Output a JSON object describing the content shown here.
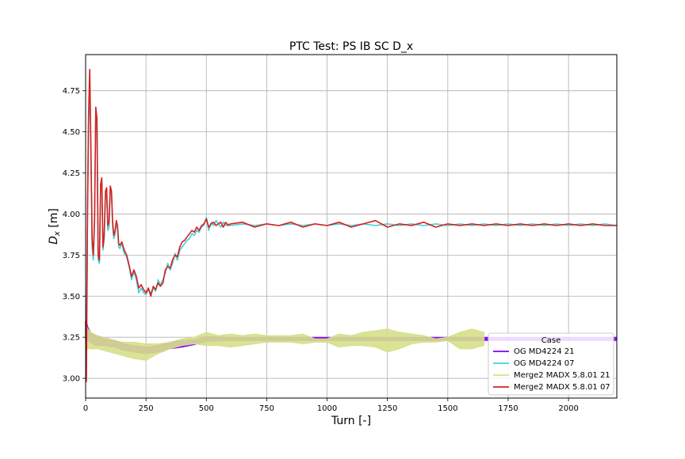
{
  "chart_data": {
    "type": "line",
    "title": "PTC Test: PS IB SC D_x",
    "xlabel": "Turn [-]",
    "ylabel_main": "D",
    "ylabel_sub": "x",
    "ylabel_unit": " [m]",
    "xlim": [
      0,
      2200
    ],
    "ylim": [
      2.88,
      4.97
    ],
    "x_ticks": [
      0,
      250,
      500,
      750,
      1000,
      1250,
      1500,
      1750,
      2000
    ],
    "y_ticks": [
      3.0,
      3.25,
      3.5,
      3.75,
      4.0,
      4.25,
      4.5,
      4.75
    ],
    "x_tick_labels": [
      "0",
      "250",
      "500",
      "750",
      "1000",
      "1250",
      "1500",
      "1750",
      "2000"
    ],
    "y_tick_labels": [
      "3.00",
      "3.25",
      "3.50",
      "3.75",
      "4.00",
      "4.25",
      "4.50",
      "4.75"
    ],
    "grid": true,
    "legend_title": "Case",
    "legend_position": "lower-right",
    "series": [
      {
        "name": "OG MD4224 21",
        "color": "#7f00ff",
        "style": "band",
        "x": [
          0,
          5,
          10,
          20,
          40,
          80,
          120,
          160,
          200,
          250,
          300,
          350,
          400,
          450,
          500,
          600,
          700,
          800,
          900,
          1000,
          1200,
          1400,
          1600,
          1800,
          2000,
          2200
        ],
        "center": [
          3.29,
          3.3,
          3.27,
          3.25,
          3.23,
          3.22,
          3.21,
          3.19,
          3.18,
          3.17,
          3.18,
          3.2,
          3.21,
          3.22,
          3.24,
          3.24,
          3.24,
          3.24,
          3.24,
          3.24,
          3.24,
          3.24,
          3.24,
          3.24,
          3.24,
          3.24
        ],
        "half_width": [
          0.05,
          0.04,
          0.04,
          0.03,
          0.03,
          0.02,
          0.02,
          0.02,
          0.02,
          0.02,
          0.02,
          0.02,
          0.02,
          0.015,
          0.015,
          0.01,
          0.01,
          0.01,
          0.01,
          0.01,
          0.01,
          0.01,
          0.01,
          0.01,
          0.01,
          0.01
        ]
      },
      {
        "name": "OG MD4224 07",
        "color": "#40d0d8",
        "style": "line",
        "x": [
          0,
          3,
          8,
          12,
          17,
          22,
          27,
          32,
          37,
          42,
          47,
          52,
          57,
          62,
          67,
          72,
          77,
          82,
          87,
          92,
          97,
          102,
          107,
          112,
          117,
          122,
          127,
          132,
          137,
          142,
          150,
          160,
          170,
          180,
          190,
          200,
          210,
          220,
          230,
          240,
          250,
          260,
          270,
          280,
          290,
          300,
          310,
          320,
          330,
          340,
          350,
          360,
          370,
          380,
          390,
          400,
          410,
          420,
          430,
          440,
          450,
          460,
          470,
          480,
          490,
          500,
          510,
          520,
          530,
          540,
          550,
          560,
          570,
          580,
          590,
          600,
          650,
          700,
          750,
          800,
          850,
          900,
          950,
          1000,
          1050,
          1100,
          1150,
          1200,
          1250,
          1300,
          1350,
          1400,
          1450,
          1500,
          1550,
          1600,
          1650,
          1700,
          1750,
          1800,
          1850,
          1900,
          1950,
          2000,
          2050,
          2100,
          2150,
          2200
        ],
        "y": [
          3.3,
          3.0,
          4.05,
          4.55,
          4.8,
          4.35,
          3.8,
          3.72,
          3.95,
          4.6,
          4.55,
          3.72,
          3.7,
          4.15,
          4.18,
          3.78,
          3.85,
          4.1,
          4.12,
          3.9,
          3.92,
          4.14,
          4.13,
          3.92,
          3.85,
          3.88,
          3.94,
          3.92,
          3.8,
          3.79,
          3.82,
          3.76,
          3.74,
          3.68,
          3.6,
          3.65,
          3.6,
          3.52,
          3.55,
          3.52,
          3.51,
          3.54,
          3.52,
          3.55,
          3.53,
          3.6,
          3.57,
          3.6,
          3.64,
          3.7,
          3.66,
          3.7,
          3.76,
          3.72,
          3.78,
          3.8,
          3.82,
          3.84,
          3.85,
          3.88,
          3.87,
          3.9,
          3.89,
          3.92,
          3.93,
          3.98,
          3.9,
          3.95,
          3.93,
          3.96,
          3.94,
          3.92,
          3.95,
          3.93,
          3.94,
          3.93,
          3.94,
          3.93,
          3.94,
          3.93,
          3.94,
          3.93,
          3.94,
          3.93,
          3.94,
          3.93,
          3.94,
          3.93,
          3.94,
          3.93,
          3.94,
          3.93,
          3.94,
          3.93,
          3.94,
          3.93,
          3.94,
          3.93,
          3.94,
          3.93,
          3.94,
          3.93,
          3.94,
          3.93,
          3.94,
          3.93,
          3.94,
          3.93
        ]
      },
      {
        "name": "Merge2 MADX 5.8.01 21",
        "color": "#d6e08a",
        "style": "band",
        "x": [
          0,
          10,
          20,
          50,
          100,
          150,
          200,
          250,
          300,
          350,
          400,
          450,
          500,
          550,
          600,
          650,
          700,
          750,
          800,
          850,
          900,
          950,
          1000,
          1050,
          1100,
          1150,
          1200,
          1250,
          1300,
          1350,
          1400,
          1450,
          1500,
          1550,
          1600,
          1650
        ],
        "center": [
          3.25,
          3.24,
          3.23,
          3.22,
          3.2,
          3.18,
          3.17,
          3.16,
          3.18,
          3.2,
          3.22,
          3.23,
          3.24,
          3.23,
          3.23,
          3.23,
          3.24,
          3.24,
          3.24,
          3.24,
          3.24,
          3.23,
          3.23,
          3.23,
          3.23,
          3.24,
          3.24,
          3.23,
          3.23,
          3.24,
          3.24,
          3.23,
          3.24,
          3.23,
          3.24,
          3.24
        ],
        "half_width": [
          0.08,
          0.06,
          0.05,
          0.04,
          0.04,
          0.04,
          0.05,
          0.05,
          0.03,
          0.02,
          0.02,
          0.02,
          0.04,
          0.03,
          0.04,
          0.03,
          0.03,
          0.02,
          0.02,
          0.02,
          0.03,
          0.01,
          0.01,
          0.04,
          0.03,
          0.04,
          0.05,
          0.07,
          0.05,
          0.03,
          0.02,
          0.01,
          0.01,
          0.05,
          0.06,
          0.04
        ]
      },
      {
        "name": "Merge2 MADX 5.8.01 07",
        "color": "#d82020",
        "style": "line",
        "x": [
          0,
          3,
          8,
          12,
          17,
          22,
          27,
          32,
          37,
          42,
          47,
          52,
          57,
          62,
          67,
          72,
          77,
          82,
          87,
          92,
          97,
          102,
          107,
          112,
          117,
          122,
          127,
          132,
          137,
          142,
          150,
          160,
          170,
          180,
          190,
          200,
          210,
          220,
          230,
          240,
          250,
          260,
          270,
          280,
          290,
          300,
          310,
          320,
          330,
          340,
          350,
          360,
          370,
          380,
          390,
          400,
          410,
          420,
          430,
          440,
          450,
          460,
          470,
          480,
          490,
          500,
          510,
          520,
          530,
          540,
          550,
          560,
          570,
          580,
          590,
          600,
          650,
          700,
          750,
          800,
          850,
          900,
          950,
          1000,
          1050,
          1100,
          1150,
          1200,
          1250,
          1300,
          1350,
          1400,
          1450,
          1500,
          1550,
          1600,
          1650,
          1700,
          1750,
          1800,
          1850,
          1900,
          1950,
          2000,
          2050,
          2100,
          2150,
          2200
        ],
        "y": [
          3.35,
          2.98,
          4.0,
          4.6,
          4.88,
          4.4,
          3.85,
          3.75,
          3.98,
          4.65,
          4.58,
          3.75,
          3.72,
          4.18,
          4.22,
          3.8,
          3.87,
          4.14,
          4.16,
          3.93,
          3.95,
          4.17,
          4.14,
          3.95,
          3.87,
          3.9,
          3.96,
          3.93,
          3.82,
          3.81,
          3.83,
          3.78,
          3.75,
          3.69,
          3.62,
          3.66,
          3.62,
          3.55,
          3.57,
          3.54,
          3.52,
          3.55,
          3.5,
          3.56,
          3.54,
          3.58,
          3.56,
          3.58,
          3.66,
          3.68,
          3.67,
          3.72,
          3.75,
          3.74,
          3.8,
          3.83,
          3.84,
          3.86,
          3.88,
          3.9,
          3.89,
          3.92,
          3.9,
          3.93,
          3.94,
          3.97,
          3.92,
          3.94,
          3.95,
          3.93,
          3.94,
          3.95,
          3.92,
          3.95,
          3.93,
          3.94,
          3.95,
          3.92,
          3.94,
          3.93,
          3.95,
          3.92,
          3.94,
          3.93,
          3.95,
          3.92,
          3.94,
          3.96,
          3.92,
          3.94,
          3.93,
          3.95,
          3.92,
          3.94,
          3.93,
          3.94,
          3.93,
          3.94,
          3.93,
          3.94,
          3.93,
          3.94,
          3.93,
          3.94,
          3.93,
          3.94,
          3.93,
          3.93
        ]
      }
    ]
  }
}
